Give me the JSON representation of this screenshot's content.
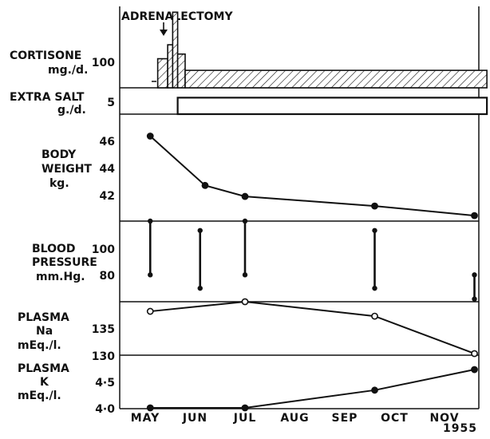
{
  "chart_data": {
    "type": "line",
    "months": [
      "MAY",
      "JUN",
      "JUL",
      "AUG",
      "SEP",
      "OCT",
      "NOV"
    ],
    "year": "1955",
    "annotation": "ADRENALECTOMY",
    "panels": {
      "cortisone": {
        "label": [
          "CORTISONE",
          "mg./d."
        ],
        "ticks": [
          "100"
        ],
        "ylim": [
          75,
          145
        ],
        "bars": [
          {
            "x0": 0.25,
            "x1": 0.45,
            "value": 100
          },
          {
            "x0": 0.45,
            "x1": 0.55,
            "value": 112
          },
          {
            "x0": 0.55,
            "x1": 0.65,
            "value": 140
          },
          {
            "x0": 0.65,
            "x1": 0.8,
            "value": 104
          },
          {
            "x0": 0.8,
            "x1": 6.85,
            "value": 90
          }
        ]
      },
      "extra_salt": {
        "label": [
          "EXTRA SALT",
          "g./d."
        ],
        "ticks": [
          "5"
        ],
        "ylim": [
          0,
          8
        ],
        "bars": [
          {
            "x0": 0.65,
            "x1": 6.85,
            "value": 5
          }
        ]
      },
      "body_weight": {
        "label": [
          "BODY",
          "WEIGHT",
          "kg."
        ],
        "ticks": [
          "46",
          "44",
          "42"
        ],
        "ylim": [
          40.0,
          47.8
        ],
        "points": [
          {
            "x": 0.1,
            "y": 46.2
          },
          {
            "x": 1.2,
            "y": 42.6
          },
          {
            "x": 2.0,
            "y": 41.8
          },
          {
            "x": 4.6,
            "y": 41.1
          },
          {
            "x": 6.6,
            "y": 40.4
          }
        ]
      },
      "blood_pressure": {
        "label": [
          "BLOOD",
          "PRESSURE",
          "mm.Hg."
        ],
        "ticks": [
          "100",
          "80"
        ],
        "ylim": [
          60,
          120
        ],
        "ranges": [
          {
            "x": 0.1,
            "high": 120,
            "low": 80
          },
          {
            "x": 1.1,
            "high": 113,
            "low": 70
          },
          {
            "x": 2.0,
            "high": 120,
            "low": 80
          },
          {
            "x": 4.6,
            "high": 113,
            "low": 70
          },
          {
            "x": 6.6,
            "high": 80,
            "low": 62
          }
        ]
      },
      "plasma_na": {
        "label": [
          "PLASMA",
          "Na",
          "mEq./l."
        ],
        "ticks": [
          "135",
          "130"
        ],
        "ylim": [
          130,
          140
        ],
        "points": [
          {
            "x": 0.1,
            "y": 138.2
          },
          {
            "x": 2.0,
            "y": 140.0
          },
          {
            "x": 4.6,
            "y": 137.3
          },
          {
            "x": 6.6,
            "y": 130.3
          }
        ]
      },
      "plasma_k": {
        "label": [
          "PLASMA",
          "K",
          "mEq./l."
        ],
        "ticks": [
          "4·5",
          "4·0"
        ],
        "ylim": [
          4.0,
          5.3
        ],
        "points": [
          {
            "x": 0.1,
            "y": 4.02
          },
          {
            "x": 2.0,
            "y": 4.02
          },
          {
            "x": 4.6,
            "y": 4.45
          },
          {
            "x": 6.6,
            "y": 4.95
          }
        ]
      }
    }
  }
}
